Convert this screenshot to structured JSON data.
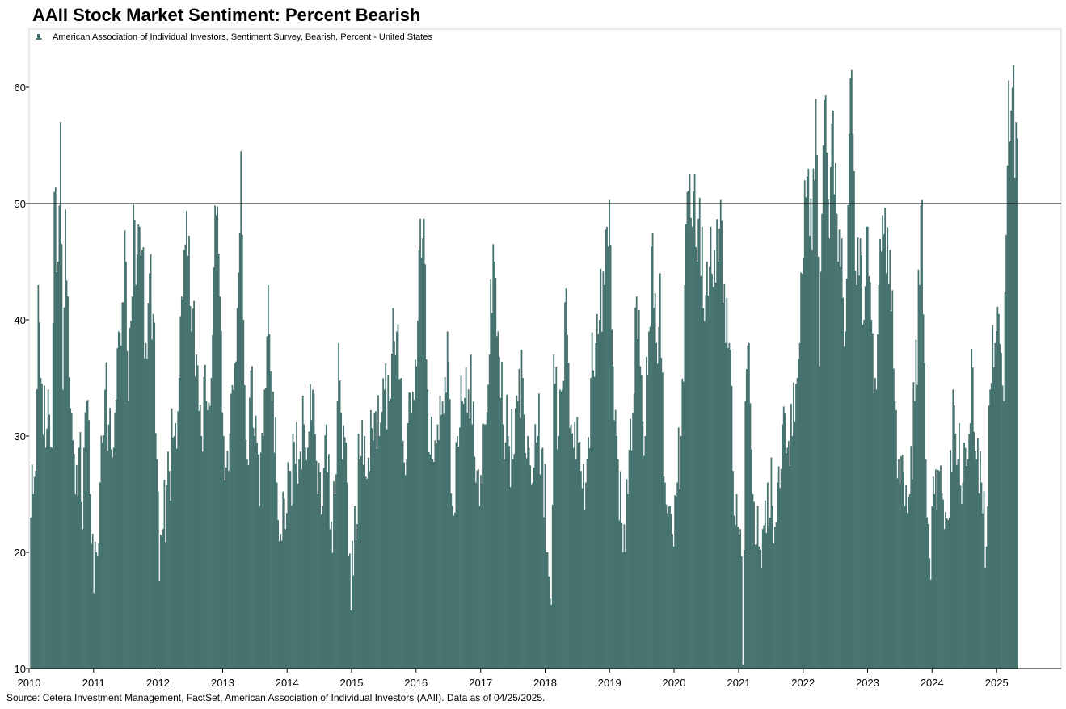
{
  "chart_data": {
    "type": "bar",
    "title": "AAII Stock Market Sentiment: Percent Bearish",
    "legend": {
      "position": "top-left",
      "entries": [
        "American Association of Individual Investors, Sentiment Survey, Bearish, Percent - United States"
      ]
    },
    "series": [
      {
        "name": "American Association of Individual Investors, Sentiment Survey, Bearish, Percent - United States",
        "color": "#46726F",
        "frequency": "weekly",
        "start": "2010-01-07",
        "end": "2025-04-24",
        "anchors": [
          [
            "2010-01-07",
            23
          ],
          [
            "2010-02-04",
            27
          ],
          [
            "2010-02-18",
            43
          ],
          [
            "2010-03-04",
            35
          ],
          [
            "2010-04-01",
            29
          ],
          [
            "2010-04-15",
            34
          ],
          [
            "2010-05-06",
            29
          ],
          [
            "2010-05-20",
            51
          ],
          [
            "2010-06-10",
            45
          ],
          [
            "2010-06-24",
            57
          ],
          [
            "2010-07-08",
            34
          ],
          [
            "2010-07-22",
            49.5
          ],
          [
            "2010-08-05",
            42
          ],
          [
            "2010-08-26",
            32
          ],
          [
            "2010-09-16",
            25
          ],
          [
            "2010-10-07",
            29
          ],
          [
            "2010-10-28",
            22
          ],
          [
            "2010-11-18",
            33
          ],
          [
            "2010-12-09",
            25
          ],
          [
            "2010-12-30",
            16.5
          ],
          [
            "2011-01-13",
            20
          ],
          [
            "2011-02-03",
            26
          ],
          [
            "2011-03-03",
            34
          ],
          [
            "2011-03-24",
            31
          ],
          [
            "2011-04-21",
            29
          ],
          [
            "2011-05-19",
            39
          ],
          [
            "2011-06-09",
            41.5
          ],
          [
            "2011-06-23",
            47.7
          ],
          [
            "2011-07-14",
            33
          ],
          [
            "2011-08-04",
            42
          ],
          [
            "2011-08-11",
            49.9
          ],
          [
            "2011-08-25",
            43
          ],
          [
            "2011-09-15",
            48
          ],
          [
            "2011-09-29",
            46
          ],
          [
            "2011-10-20",
            38
          ],
          [
            "2011-11-10",
            44
          ],
          [
            "2011-12-01",
            40.5
          ],
          [
            "2011-12-22",
            28
          ],
          [
            "2012-01-05",
            17.5
          ],
          [
            "2012-01-26",
            22
          ],
          [
            "2012-03-01",
            27
          ],
          [
            "2012-03-29",
            30
          ],
          [
            "2012-04-26",
            35
          ],
          [
            "2012-05-10",
            42
          ],
          [
            "2012-05-24",
            46
          ],
          [
            "2012-06-14",
            45.5
          ],
          [
            "2012-07-05",
            39
          ],
          [
            "2012-08-02",
            37
          ],
          [
            "2012-08-30",
            30
          ],
          [
            "2012-09-27",
            33
          ],
          [
            "2012-10-25",
            35
          ],
          [
            "2012-11-08",
            44.5
          ],
          [
            "2012-11-22",
            49
          ],
          [
            "2012-12-13",
            42
          ],
          [
            "2013-01-03",
            30
          ],
          [
            "2013-01-31",
            27
          ],
          [
            "2013-02-28",
            34
          ],
          [
            "2013-03-21",
            41
          ],
          [
            "2013-04-11",
            54.5
          ],
          [
            "2013-04-25",
            40
          ],
          [
            "2013-05-16",
            28
          ],
          [
            "2013-06-13",
            36
          ],
          [
            "2013-06-27",
            30
          ],
          [
            "2013-07-25",
            24
          ],
          [
            "2013-08-22",
            34
          ],
          [
            "2013-09-12",
            43
          ],
          [
            "2013-10-03",
            33
          ],
          [
            "2013-10-31",
            26
          ],
          [
            "2013-11-28",
            21
          ],
          [
            "2013-12-19",
            22
          ],
          [
            "2014-01-16",
            27
          ],
          [
            "2014-02-06",
            29.5
          ],
          [
            "2014-03-06",
            28
          ],
          [
            "2014-04-03",
            31
          ],
          [
            "2014-04-24",
            29
          ],
          [
            "2014-05-22",
            34
          ],
          [
            "2014-06-19",
            25
          ],
          [
            "2014-07-17",
            24
          ],
          [
            "2014-08-07",
            31
          ],
          [
            "2014-08-28",
            22
          ],
          [
            "2014-09-25",
            25
          ],
          [
            "2014-10-16",
            38
          ],
          [
            "2014-11-06",
            28
          ],
          [
            "2014-12-04",
            26
          ],
          [
            "2014-12-25",
            15
          ],
          [
            "2015-01-15",
            24
          ],
          [
            "2015-02-12",
            28
          ],
          [
            "2015-03-12",
            30
          ],
          [
            "2015-04-09",
            27
          ],
          [
            "2015-05-07",
            32
          ],
          [
            "2015-06-04",
            30
          ],
          [
            "2015-07-02",
            34
          ],
          [
            "2015-07-30",
            33
          ],
          [
            "2015-08-20",
            41
          ],
          [
            "2015-09-10",
            39
          ],
          [
            "2015-10-08",
            35
          ],
          [
            "2015-11-05",
            28
          ],
          [
            "2015-12-03",
            32
          ],
          [
            "2015-12-31",
            36
          ],
          [
            "2016-01-14",
            46
          ],
          [
            "2016-01-21",
            48.7
          ],
          [
            "2016-02-11",
            48.7
          ],
          [
            "2016-03-03",
            34
          ],
          [
            "2016-03-31",
            28
          ],
          [
            "2016-04-28",
            31
          ],
          [
            "2016-05-26",
            33
          ],
          [
            "2016-06-23",
            39
          ],
          [
            "2016-07-21",
            24
          ],
          [
            "2016-08-18",
            30
          ],
          [
            "2016-09-15",
            33
          ],
          [
            "2016-10-13",
            32
          ],
          [
            "2016-11-03",
            37
          ],
          [
            "2016-12-01",
            26
          ],
          [
            "2016-12-22",
            24
          ],
          [
            "2017-01-19",
            31
          ],
          [
            "2017-02-16",
            37
          ],
          [
            "2017-03-09",
            46.5
          ],
          [
            "2017-04-06",
            39
          ],
          [
            "2017-05-04",
            31
          ],
          [
            "2017-06-01",
            30
          ],
          [
            "2017-06-29",
            28
          ],
          [
            "2017-07-27",
            33
          ],
          [
            "2017-08-24",
            35
          ],
          [
            "2017-09-21",
            30
          ],
          [
            "2017-10-19",
            26
          ],
          [
            "2017-11-16",
            30
          ],
          [
            "2017-12-14",
            29
          ],
          [
            "2018-01-11",
            20
          ],
          [
            "2018-02-01",
            15.5
          ],
          [
            "2018-02-15",
            37
          ],
          [
            "2018-03-15",
            30
          ],
          [
            "2018-04-05",
            34
          ],
          [
            "2018-04-26",
            42.7
          ],
          [
            "2018-05-24",
            31
          ],
          [
            "2018-06-21",
            28
          ],
          [
            "2018-07-19",
            27
          ],
          [
            "2018-08-16",
            26
          ],
          [
            "2018-09-13",
            35
          ],
          [
            "2018-10-11",
            38
          ],
          [
            "2018-11-01",
            40
          ],
          [
            "2018-11-29",
            43
          ],
          [
            "2018-12-13",
            48
          ],
          [
            "2018-12-27",
            50.3
          ],
          [
            "2019-01-17",
            36
          ],
          [
            "2019-02-14",
            28
          ],
          [
            "2019-03-14",
            20
          ],
          [
            "2019-04-11",
            25
          ],
          [
            "2019-05-09",
            32
          ],
          [
            "2019-05-30",
            42
          ],
          [
            "2019-06-20",
            36
          ],
          [
            "2019-07-18",
            30
          ],
          [
            "2019-08-08",
            39
          ],
          [
            "2019-08-29",
            47.5
          ],
          [
            "2019-09-19",
            38
          ],
          [
            "2019-10-10",
            44
          ],
          [
            "2019-11-07",
            26
          ],
          [
            "2019-12-05",
            24
          ],
          [
            "2019-12-26",
            20.5
          ],
          [
            "2020-01-16",
            26
          ],
          [
            "2020-02-06",
            30
          ],
          [
            "2020-02-27",
            43
          ],
          [
            "2020-03-12",
            51
          ],
          [
            "2020-03-26",
            52.5
          ],
          [
            "2020-04-09",
            48
          ],
          [
            "2020-04-23",
            52.5
          ],
          [
            "2020-05-07",
            45
          ],
          [
            "2020-05-21",
            50.5
          ],
          [
            "2020-06-11",
            41
          ],
          [
            "2020-07-02",
            45
          ],
          [
            "2020-07-23",
            48
          ],
          [
            "2020-08-13",
            46
          ],
          [
            "2020-09-03",
            45
          ],
          [
            "2020-09-24",
            48.5
          ],
          [
            "2020-10-15",
            38
          ],
          [
            "2020-11-05",
            38
          ],
          [
            "2020-11-26",
            27
          ],
          [
            "2020-12-17",
            25
          ],
          [
            "2021-01-07",
            22
          ],
          [
            "2021-01-21",
            10.3
          ],
          [
            "2021-02-04",
            33
          ],
          [
            "2021-02-25",
            38
          ],
          [
            "2021-03-18",
            25
          ],
          [
            "2021-04-15",
            24
          ],
          [
            "2021-05-13",
            22
          ],
          [
            "2021-06-10",
            26
          ],
          [
            "2021-07-08",
            24
          ],
          [
            "2021-08-05",
            26
          ],
          [
            "2021-09-02",
            31
          ],
          [
            "2021-09-30",
            29
          ],
          [
            "2021-10-28",
            30
          ],
          [
            "2021-11-25",
            35
          ],
          [
            "2021-12-09",
            38
          ],
          [
            "2022-01-06",
            52
          ],
          [
            "2022-01-27",
            53
          ],
          [
            "2022-02-17",
            46
          ],
          [
            "2022-03-10",
            59
          ],
          [
            "2022-03-31",
            36
          ],
          [
            "2022-04-21",
            55
          ],
          [
            "2022-05-05",
            59.3
          ],
          [
            "2022-05-26",
            47
          ],
          [
            "2022-06-16",
            58
          ],
          [
            "2022-07-14",
            45
          ],
          [
            "2022-08-04",
            47
          ],
          [
            "2022-08-25",
            39
          ],
          [
            "2022-09-15",
            56
          ],
          [
            "2022-09-22",
            60.8
          ],
          [
            "2022-10-06",
            56
          ],
          [
            "2022-10-27",
            43
          ],
          [
            "2022-11-17",
            47
          ],
          [
            "2022-12-08",
            40
          ],
          [
            "2022-12-29",
            48
          ],
          [
            "2023-01-19",
            40
          ],
          [
            "2023-02-09",
            35
          ],
          [
            "2023-03-02",
            43
          ],
          [
            "2023-03-23",
            49
          ],
          [
            "2023-04-13",
            44
          ],
          [
            "2023-05-04",
            46
          ],
          [
            "2023-06-01",
            33
          ],
          [
            "2023-06-29",
            26
          ],
          [
            "2023-07-27",
            24
          ],
          [
            "2023-08-24",
            25
          ],
          [
            "2023-09-21",
            33
          ],
          [
            "2023-10-19",
            43
          ],
          [
            "2023-11-02",
            50.3
          ],
          [
            "2023-11-23",
            28
          ],
          [
            "2023-12-14",
            19.5
          ],
          [
            "2024-01-11",
            25
          ],
          [
            "2024-02-08",
            27
          ],
          [
            "2024-03-07",
            22
          ],
          [
            "2024-04-04",
            23
          ],
          [
            "2024-04-25",
            34
          ],
          [
            "2024-05-23",
            28
          ],
          [
            "2024-06-20",
            26
          ],
          [
            "2024-07-18",
            28
          ],
          [
            "2024-08-08",
            37.5
          ],
          [
            "2024-09-05",
            28
          ],
          [
            "2024-10-03",
            26
          ],
          [
            "2024-10-31",
            20.5
          ],
          [
            "2024-11-21",
            34
          ],
          [
            "2024-12-19",
            38
          ],
          [
            "2025-01-09",
            40.5
          ],
          [
            "2025-02-06",
            33
          ],
          [
            "2025-02-20",
            47.3
          ],
          [
            "2025-03-06",
            60.6
          ],
          [
            "2025-03-20",
            58
          ],
          [
            "2025-04-03",
            61.9
          ],
          [
            "2025-04-10",
            52.2
          ],
          [
            "2025-04-17",
            57
          ],
          [
            "2025-04-24",
            55.6
          ]
        ]
      }
    ],
    "reference_line": {
      "y": 50,
      "color": "#000000"
    },
    "xlabel": "",
    "ylabel": "",
    "xlim": [
      "2010-01-01",
      "2025-12-31"
    ],
    "ylim": [
      10,
      65
    ],
    "x_ticks": [
      "2010",
      "2011",
      "2012",
      "2013",
      "2014",
      "2015",
      "2016",
      "2017",
      "2018",
      "2019",
      "2020",
      "2021",
      "2022",
      "2023",
      "2024",
      "2025"
    ],
    "y_ticks": [
      10,
      20,
      30,
      40,
      50,
      60
    ],
    "grid": false
  },
  "source_text": "Source: Cetera Investment Management, FactSet, American Association of Individual Investors (AAII). Data as of 04/25/2025."
}
